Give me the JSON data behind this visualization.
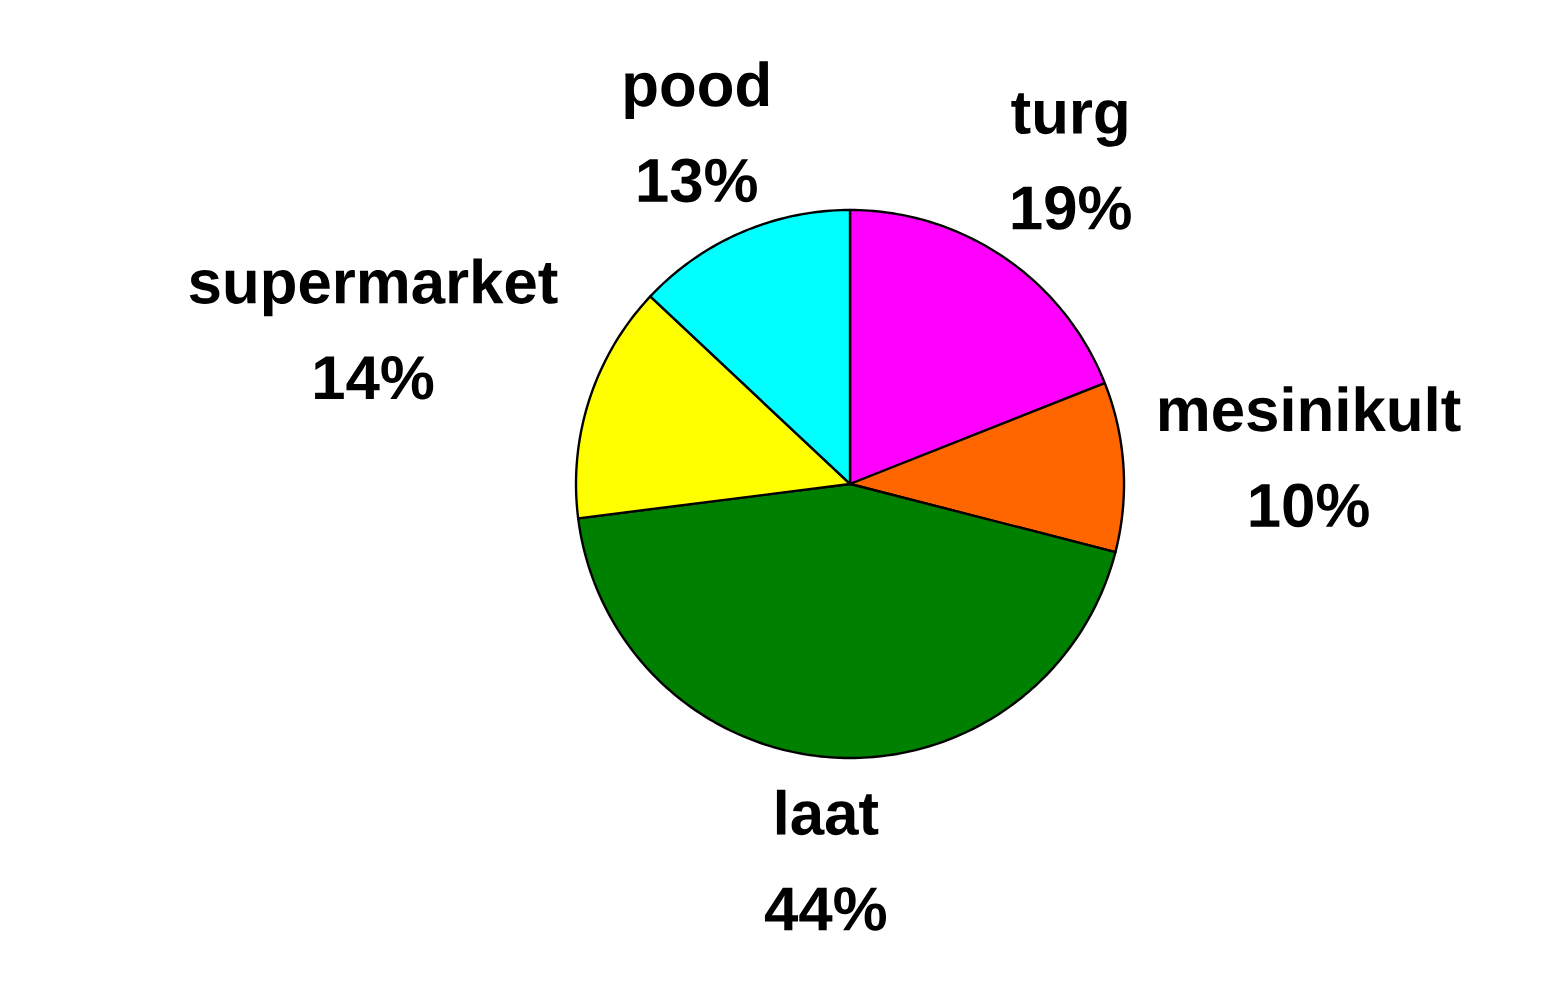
{
  "chart_data": {
    "type": "pie",
    "categories": [
      "turg",
      "mesinikult",
      "laat",
      "supermarket",
      "pood"
    ],
    "values": [
      19,
      10,
      44,
      14,
      13
    ],
    "colors": [
      "#ff00ff",
      "#ff6600",
      "#008000",
      "#ffff00",
      "#00ffff"
    ],
    "value_labels": [
      "19%",
      "10%",
      "44%",
      "14%",
      "13%"
    ]
  }
}
